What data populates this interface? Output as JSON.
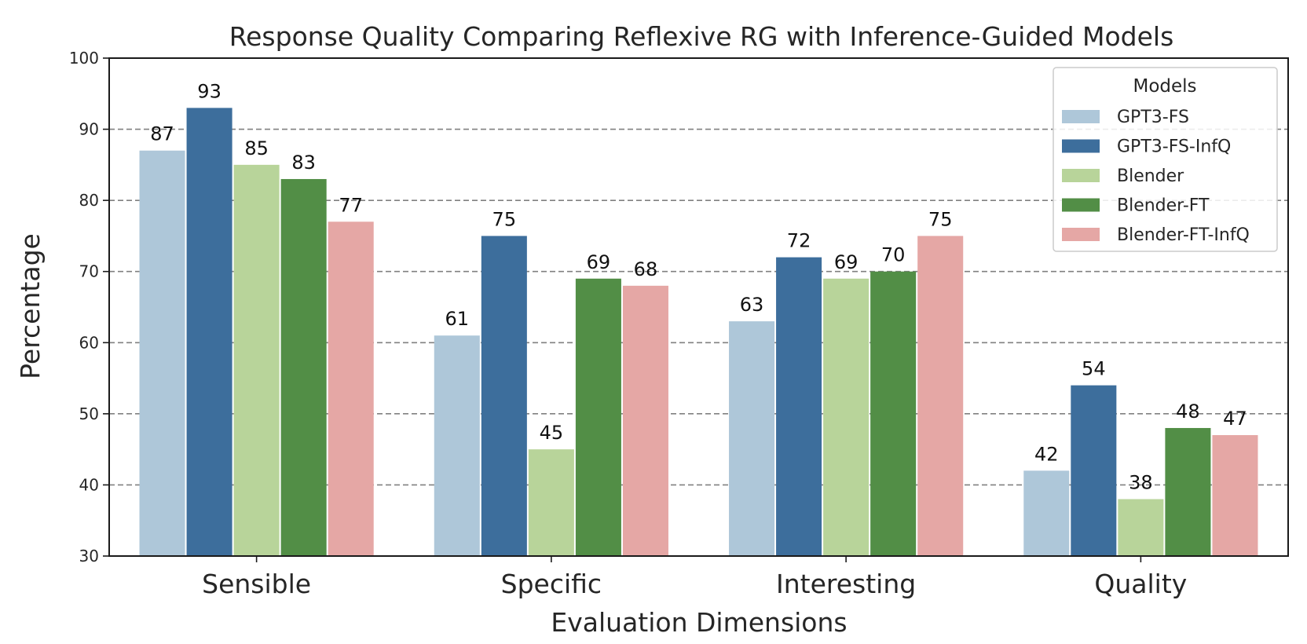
{
  "chart_data": {
    "type": "bar",
    "title": "Response Quality Comparing Reflexive RG with Inference-Guided Models",
    "xlabel": "Evaluation Dimensions",
    "ylabel": "Percentage",
    "ylim": [
      30,
      100
    ],
    "yticks": [
      30,
      40,
      50,
      60,
      70,
      80,
      90,
      100
    ],
    "grid": "horizontal dashed",
    "legend_title": "Models",
    "legend_position": "top-right",
    "categories": [
      "Sensible",
      "Specific",
      "Interesting",
      "Quality"
    ],
    "series": [
      {
        "name": "GPT3-FS",
        "color": "#aec7d9",
        "values": [
          87,
          61,
          63,
          42
        ]
      },
      {
        "name": "GPT3-FS-InfQ",
        "color": "#3d6e9c",
        "values": [
          93,
          75,
          72,
          54
        ]
      },
      {
        "name": "Blender",
        "color": "#b8d49a",
        "values": [
          85,
          45,
          69,
          38
        ]
      },
      {
        "name": "Blender-FT",
        "color": "#528e46",
        "values": [
          83,
          69,
          70,
          48
        ]
      },
      {
        "name": "Blender-FT-InfQ",
        "color": "#e5a7a5",
        "values": [
          77,
          68,
          75,
          47
        ]
      }
    ]
  }
}
